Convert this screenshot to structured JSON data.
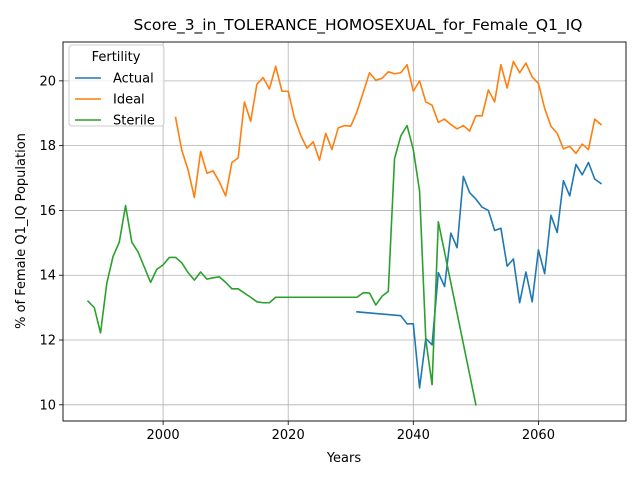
{
  "chart_data": {
    "type": "line",
    "title": "Score_3_in_TOLERANCE_HOMOSEXUAL_for_Female_Q1_IQ",
    "xlabel": "Years",
    "ylabel": "% of Female Q1_IQ Population",
    "xlim": [
      1984,
      2074
    ],
    "ylim": [
      9.5,
      21.2
    ],
    "xticks": [
      2000,
      2020,
      2040,
      2060
    ],
    "yticks": [
      10,
      12,
      14,
      16,
      18,
      20
    ],
    "grid": true,
    "legend": {
      "title": "Fertility",
      "placement": "top-left"
    },
    "series": [
      {
        "name": "Actual",
        "color": "#1f77b4",
        "x": [
          2031,
          2038,
          2039,
          2040,
          2041,
          2042,
          2043,
          2044,
          2045,
          2046,
          2047,
          2048,
          2049,
          2050,
          2051,
          2052,
          2053,
          2054,
          2055,
          2056,
          2057,
          2058,
          2059,
          2060,
          2061,
          2062,
          2063,
          2064,
          2065,
          2066,
          2067,
          2068,
          2069,
          2070
        ],
        "y": [
          12.87,
          12.75,
          12.5,
          12.5,
          10.52,
          12.05,
          11.85,
          14.08,
          13.65,
          15.3,
          14.85,
          17.05,
          16.55,
          16.35,
          16.1,
          16.0,
          15.38,
          15.45,
          14.28,
          14.5,
          13.15,
          14.1,
          13.18,
          14.78,
          14.05,
          15.85,
          15.32,
          16.92,
          16.45,
          17.42,
          17.1,
          17.48,
          16.97,
          16.83
        ]
      },
      {
        "name": "Ideal",
        "color": "#ff7f0e",
        "x": [
          2002,
          2003,
          2004,
          2005,
          2006,
          2007,
          2008,
          2009,
          2010,
          2011,
          2012,
          2013,
          2014,
          2015,
          2016,
          2017,
          2018,
          2019,
          2020,
          2021,
          2022,
          2023,
          2024,
          2025,
          2026,
          2027,
          2028,
          2029,
          2030,
          2031,
          2032,
          2033,
          2034,
          2035,
          2036,
          2037,
          2038,
          2039,
          2040,
          2041,
          2042,
          2043,
          2044,
          2045,
          2046,
          2047,
          2048,
          2049,
          2050,
          2051,
          2052,
          2053,
          2054,
          2055,
          2056,
          2057,
          2058,
          2059,
          2060,
          2061,
          2062,
          2063,
          2064,
          2065,
          2066,
          2067,
          2068,
          2069,
          2070
        ],
        "y": [
          18.87,
          17.85,
          17.25,
          16.4,
          17.82,
          17.15,
          17.22,
          16.88,
          16.45,
          17.48,
          17.62,
          19.35,
          18.75,
          19.9,
          20.1,
          19.75,
          20.45,
          19.68,
          19.68,
          18.85,
          18.32,
          17.92,
          18.12,
          17.55,
          18.38,
          17.88,
          18.55,
          18.62,
          18.6,
          19.05,
          19.65,
          20.25,
          20.02,
          20.08,
          20.28,
          20.22,
          20.25,
          20.5,
          19.68,
          20.0,
          19.35,
          19.25,
          18.72,
          18.82,
          18.65,
          18.52,
          18.62,
          18.45,
          18.92,
          18.92,
          19.72,
          19.35,
          20.5,
          19.78,
          20.6,
          20.25,
          20.55,
          20.12,
          19.92,
          19.15,
          18.6,
          18.38,
          17.9,
          17.98,
          17.76,
          18.05,
          17.88,
          18.82,
          18.65
        ]
      },
      {
        "name": "Sterile",
        "color": "#2ca02c",
        "x": [
          1988,
          1989,
          1990,
          1991,
          1992,
          1993,
          1994,
          1995,
          1996,
          1997,
          1998,
          1999,
          2000,
          2001,
          2002,
          2003,
          2004,
          2005,
          2006,
          2007,
          2008,
          2009,
          2010,
          2011,
          2012,
          2013,
          2014,
          2015,
          2016,
          2017,
          2018,
          2019,
          2020,
          2021,
          2022,
          2023,
          2024,
          2025,
          2026,
          2027,
          2028,
          2029,
          2030,
          2031,
          2032,
          2033,
          2034,
          2035,
          2036,
          2037,
          2038,
          2039,
          2040,
          2041,
          2042,
          2043,
          2044,
          2050
        ],
        "y": [
          13.2,
          13.0,
          12.22,
          13.75,
          14.58,
          15.02,
          16.15,
          15.02,
          14.72,
          14.25,
          13.78,
          14.18,
          14.32,
          14.55,
          14.55,
          14.38,
          14.08,
          13.85,
          14.1,
          13.88,
          13.92,
          13.95,
          13.78,
          13.58,
          13.58,
          13.45,
          13.32,
          13.18,
          13.15,
          13.15,
          13.32,
          13.32,
          13.32,
          13.32,
          13.32,
          13.32,
          13.32,
          13.32,
          13.32,
          13.32,
          13.32,
          13.32,
          13.32,
          13.32,
          13.46,
          13.45,
          13.08,
          13.35,
          13.5,
          17.6,
          18.3,
          18.62,
          17.88,
          16.6,
          12.0,
          10.62,
          15.65,
          10.0
        ]
      }
    ]
  }
}
